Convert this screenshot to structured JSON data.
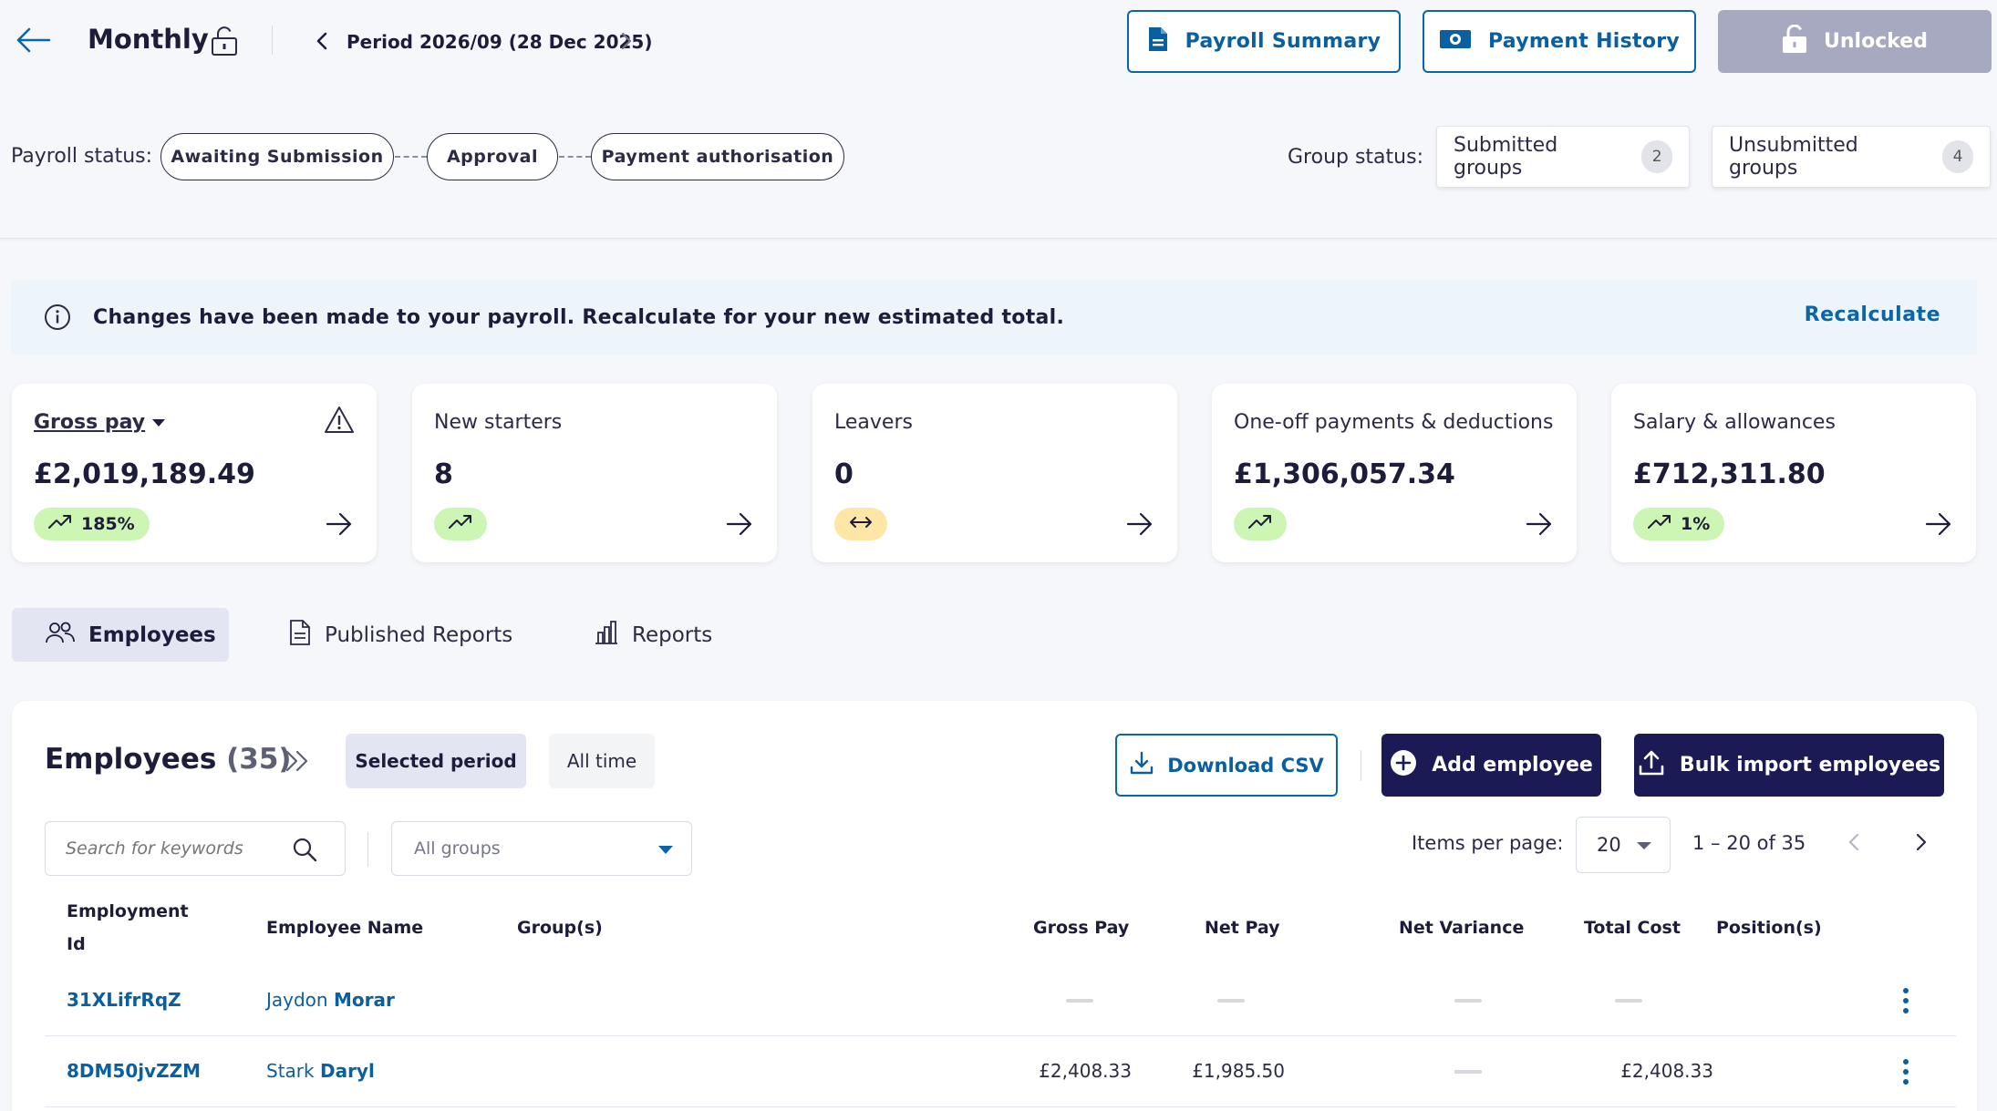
{
  "header": {
    "title": "Monthly",
    "period_label": "Period 2026/09",
    "period_date": "(28 Dec 2025)",
    "buttons": {
      "payroll_summary": "Payroll Summary",
      "payment_history": "Payment History",
      "unlocked": "Unlocked"
    },
    "payroll_status_label": "Payroll status:",
    "payroll_steps": [
      "Awaiting Submission",
      "Approval",
      "Payment authorisation"
    ],
    "group_status_label": "Group status:",
    "groups": [
      {
        "label": "Submitted groups",
        "count": "2"
      },
      {
        "label": "Unsubmitted groups",
        "count": "4"
      }
    ]
  },
  "banner": {
    "message": "Changes have been made to your payroll. Recalculate for your new estimated total.",
    "action": "Recalculate"
  },
  "cards": [
    {
      "label": "Gross pay",
      "value": "£2,019,189.49",
      "badge": "185%",
      "badge_color": "#cdf5b3"
    },
    {
      "label": "New starters",
      "value": "8",
      "badge": "",
      "badge_color": "#cdf5b3"
    },
    {
      "label": "Leavers",
      "value": "0",
      "badge": "",
      "badge_color": "#ffe6a6"
    },
    {
      "label": "One-off payments & deductions",
      "value": "£1,306,057.34",
      "badge": "",
      "badge_color": "#cdf5b3"
    },
    {
      "label": "Salary & allowances",
      "value": "£712,311.80",
      "badge": "1%",
      "badge_color": "#cdf5b3"
    }
  ],
  "tabs": [
    {
      "label": "Employees",
      "icon": "people-icon",
      "active": true
    },
    {
      "label": "Published Reports",
      "icon": "document-icon",
      "active": false
    },
    {
      "label": "Reports",
      "icon": "bar-chart-icon",
      "active": false
    }
  ],
  "employees": {
    "title": "Employees",
    "count": "(35)",
    "segments": {
      "selected": "Selected period",
      "all": "All time"
    },
    "download_csv": "Download CSV",
    "add_employee": "Add employee",
    "bulk_import": "Bulk import employees",
    "search_placeholder": "Search for keywords",
    "groups_placeholder": "All groups",
    "items_per_page_label": "Items per page:",
    "items_per_page": "20",
    "range": "1 – 20 of 35",
    "columns": {
      "id": "Employment Id",
      "name": "Employee Name",
      "groups": "Group(s)",
      "gross": "Gross Pay",
      "net": "Net Pay",
      "variance": "Net Variance",
      "cost": "Total Cost",
      "positions": "Position(s)"
    },
    "rows": [
      {
        "id": "31XLifrRqZ",
        "first": "Jaydon",
        "last": "Morar",
        "gross": "",
        "net": "",
        "variance": "",
        "cost": ""
      },
      {
        "id": "8DM50jvZZM",
        "first": "Stark",
        "last": "Daryl",
        "gross": "£2,408.33",
        "net": "£1,985.50",
        "variance": "",
        "cost": "£2,408.33"
      }
    ]
  },
  "colors": {
    "primary": "#0a66a8",
    "dark_button": "#1c1a55",
    "unlocked_button": "#a6a9c0",
    "banner_bg": "#edf4fa"
  }
}
